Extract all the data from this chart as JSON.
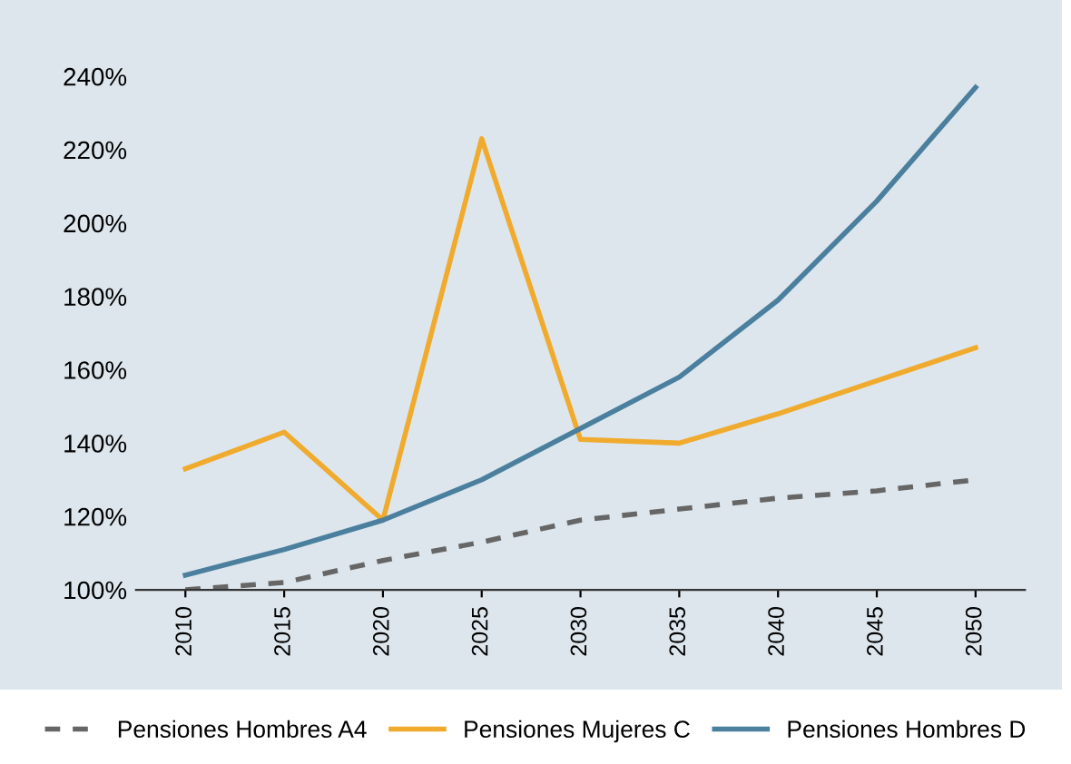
{
  "chart_data": {
    "type": "line",
    "categories": [
      "2010",
      "2015",
      "2020",
      "2025",
      "2030",
      "2035",
      "2040",
      "2045",
      "2050"
    ],
    "series": [
      {
        "name": "Pensiones Hombres A4",
        "color": "#666666",
        "line_style": "dashed",
        "values": [
          100,
          102,
          108,
          113,
          119,
          122,
          125,
          127,
          130
        ]
      },
      {
        "name": "Pensiones Mujeres C",
        "color": "#f0ab2e",
        "line_style": "solid",
        "values": [
          133,
          143,
          119,
          223,
          141,
          140,
          148,
          157,
          166
        ]
      },
      {
        "name": "Pensiones Hombres D",
        "color": "#4a7f9e",
        "line_style": "solid",
        "values": [
          104,
          111,
          119,
          130,
          144,
          158,
          179,
          206,
          237
        ]
      }
    ],
    "ylim": [
      100,
      240
    ],
    "yticks": [
      {
        "value": 100,
        "label": "100%"
      },
      {
        "value": 120,
        "label": "120%"
      },
      {
        "value": 140,
        "label": "140%"
      },
      {
        "value": 160,
        "label": "160%"
      },
      {
        "value": 180,
        "label": "180%"
      },
      {
        "value": 200,
        "label": "200%"
      },
      {
        "value": 220,
        "label": "220%"
      },
      {
        "value": 240,
        "label": "240%"
      }
    ],
    "grid": false,
    "legend": "bottom",
    "marker": "none"
  }
}
